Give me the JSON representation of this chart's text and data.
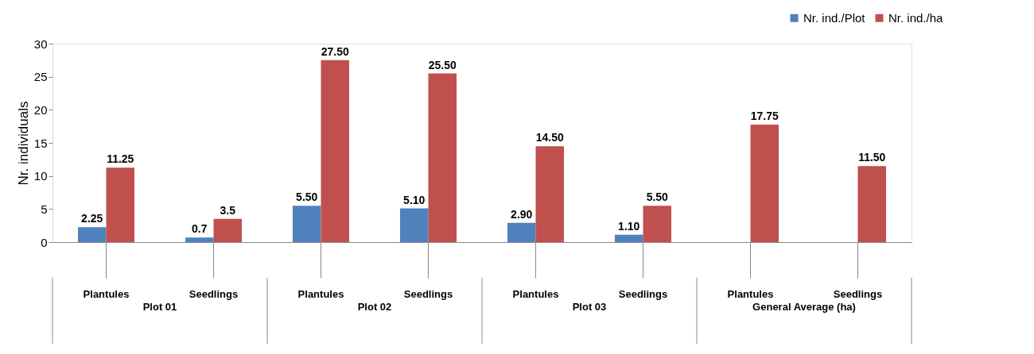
{
  "chart_data": {
    "type": "bar",
    "categories": [
      "Plantules",
      "Seedlings",
      "Plantules",
      "Seedlings",
      "Plantules",
      "Seedlings",
      "Plantules",
      "Seedlings"
    ],
    "annotations": [
      "Plot 01",
      "Plot 02",
      "Plot 03",
      "General Average (ha)"
    ],
    "ylabel": "Nr. individuals",
    "ylim": [
      0,
      30
    ],
    "yticks": [
      0,
      5,
      10,
      15,
      20,
      25,
      30
    ],
    "grid": false,
    "legend": "top right",
    "series": [
      {
        "name": "Nr. ind./Plot",
        "color": "#4f81bd",
        "values": [
          2.25,
          0.7,
          5.5,
          5.1,
          2.9,
          1.1,
          null,
          null
        ],
        "value_labels": [
          "2.25",
          "0.7",
          "5.50",
          "5.10",
          "2.90",
          "1.10",
          null,
          null
        ]
      },
      {
        "name": "Nr. ind./ha",
        "color": "#c0504d",
        "values": [
          11.25,
          3.5,
          27.5,
          25.5,
          14.5,
          5.5,
          17.75,
          11.5
        ],
        "value_labels": [
          "11.25",
          "3.5",
          "27.50",
          "25.50",
          "14.50",
          "5.50",
          "17.75",
          "11.50"
        ]
      }
    ]
  }
}
